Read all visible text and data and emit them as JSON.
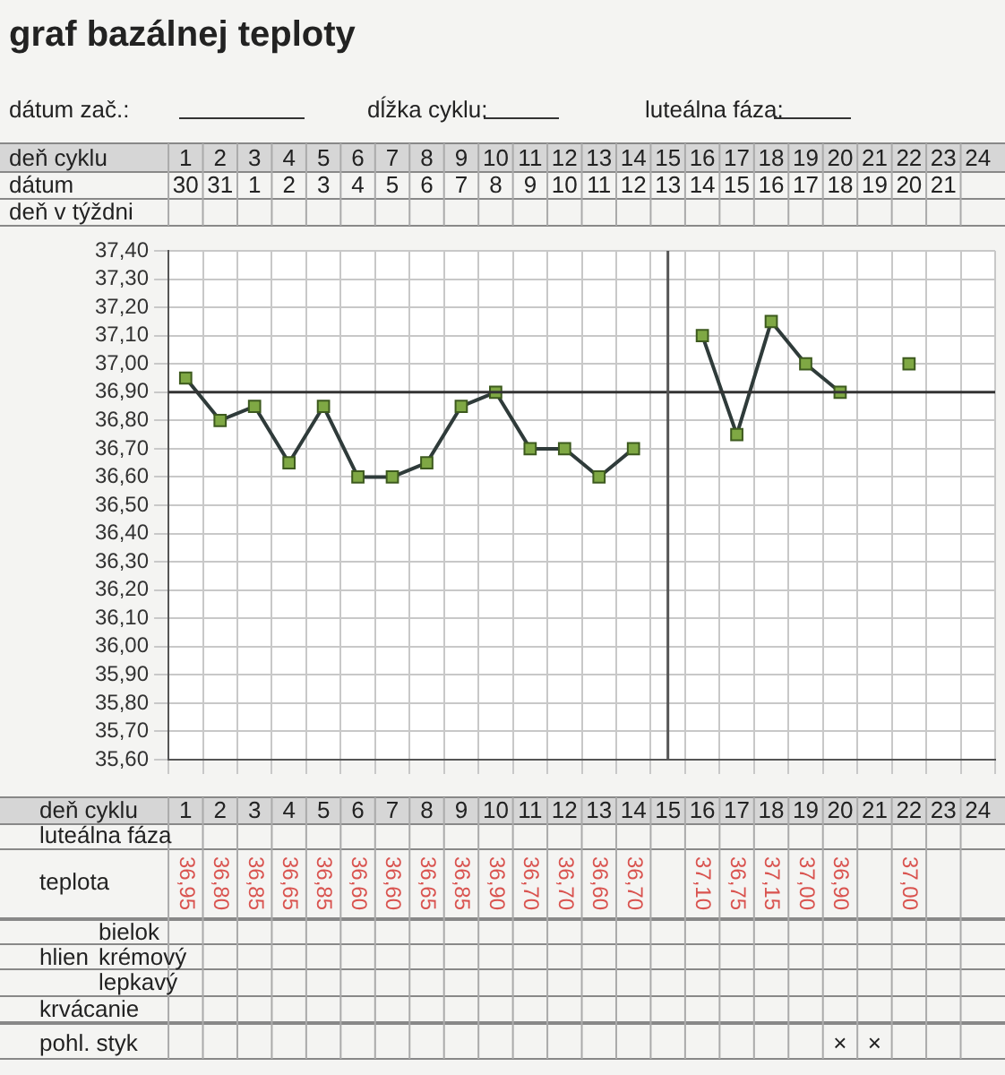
{
  "chart_data": {
    "type": "line",
    "title": "graf bazálnej teploty",
    "categories": [
      "1",
      "2",
      "3",
      "4",
      "5",
      "6",
      "7",
      "8",
      "9",
      "10",
      "11",
      "12",
      "13",
      "14",
      "15",
      "16",
      "17",
      "18",
      "19",
      "20",
      "21",
      "22",
      "23",
      "24"
    ],
    "series": [
      {
        "color": "#7fa844",
        "values": [
          36.95,
          36.8,
          36.85,
          36.65,
          36.85,
          36.6,
          36.6,
          36.65,
          36.85,
          36.9,
          36.7,
          36.7,
          36.6,
          36.7,
          null,
          37.1,
          36.75,
          37.15,
          37.0,
          36.9,
          null,
          37.0,
          null,
          null
        ],
        "value_labels": [
          "36,95",
          "36,80",
          "36,85",
          "36,65",
          "36,85",
          "36,60",
          "36,60",
          "36,65",
          "36,85",
          "36,90",
          "36,70",
          "36,70",
          "36,60",
          "36,70",
          null,
          "37,10",
          "36,75",
          "37,15",
          "37,00",
          "36,90",
          null,
          "37,00",
          null,
          null
        ]
      }
    ],
    "ylim": [
      35.6,
      37.4
    ],
    "yticks": [
      {
        "value": 35.6,
        "label": "35,60"
      },
      {
        "value": 35.7,
        "label": "35,70"
      },
      {
        "value": 35.8,
        "label": "35,80"
      },
      {
        "value": 35.9,
        "label": "35,90"
      },
      {
        "value": 36.0,
        "label": "36,00"
      },
      {
        "value": 36.1,
        "label": "36,10"
      },
      {
        "value": 36.2,
        "label": "36,20"
      },
      {
        "value": 36.3,
        "label": "36,30"
      },
      {
        "value": 36.4,
        "label": "36,40"
      },
      {
        "value": 36.5,
        "label": "36,50"
      },
      {
        "value": 36.6,
        "label": "36,60"
      },
      {
        "value": 36.7,
        "label": "36,70"
      },
      {
        "value": 36.8,
        "label": "36,80"
      },
      {
        "value": 36.9,
        "label": "36,90"
      },
      {
        "value": 37.0,
        "label": "37,00"
      },
      {
        "value": 37.1,
        "label": "37,10"
      },
      {
        "value": 37.2,
        "label": "37,20"
      },
      {
        "value": 37.3,
        "label": "37,30"
      },
      {
        "value": 37.4,
        "label": "37,40"
      }
    ],
    "ref_lines": [
      {
        "axis": "y",
        "value": 36.9,
        "color": "#333333"
      },
      {
        "axis": "x",
        "value": "15",
        "color": "#555555"
      }
    ],
    "grid": true,
    "marker": "square",
    "line_style": "solid",
    "legend": false,
    "annotations": [
      "dátum zač.:",
      "dĺžka cyklu:",
      "luteálna fáza:",
      "deň cyklu",
      "dátum",
      "deň v týždni",
      "deň cyklu",
      "luteálna fáza",
      "teplota",
      "hlien",
      "bielok",
      "krémový",
      "lepkavý",
      "krvácanie",
      "pohl. styk",
      "30",
      "31",
      "1",
      "2",
      "3",
      "4",
      "5",
      "6",
      "7",
      "8",
      "9",
      "10",
      "11",
      "12",
      "13",
      "14",
      "15",
      "16",
      "17",
      "18",
      "19",
      "20",
      "21",
      "×",
      "×"
    ]
  }
}
